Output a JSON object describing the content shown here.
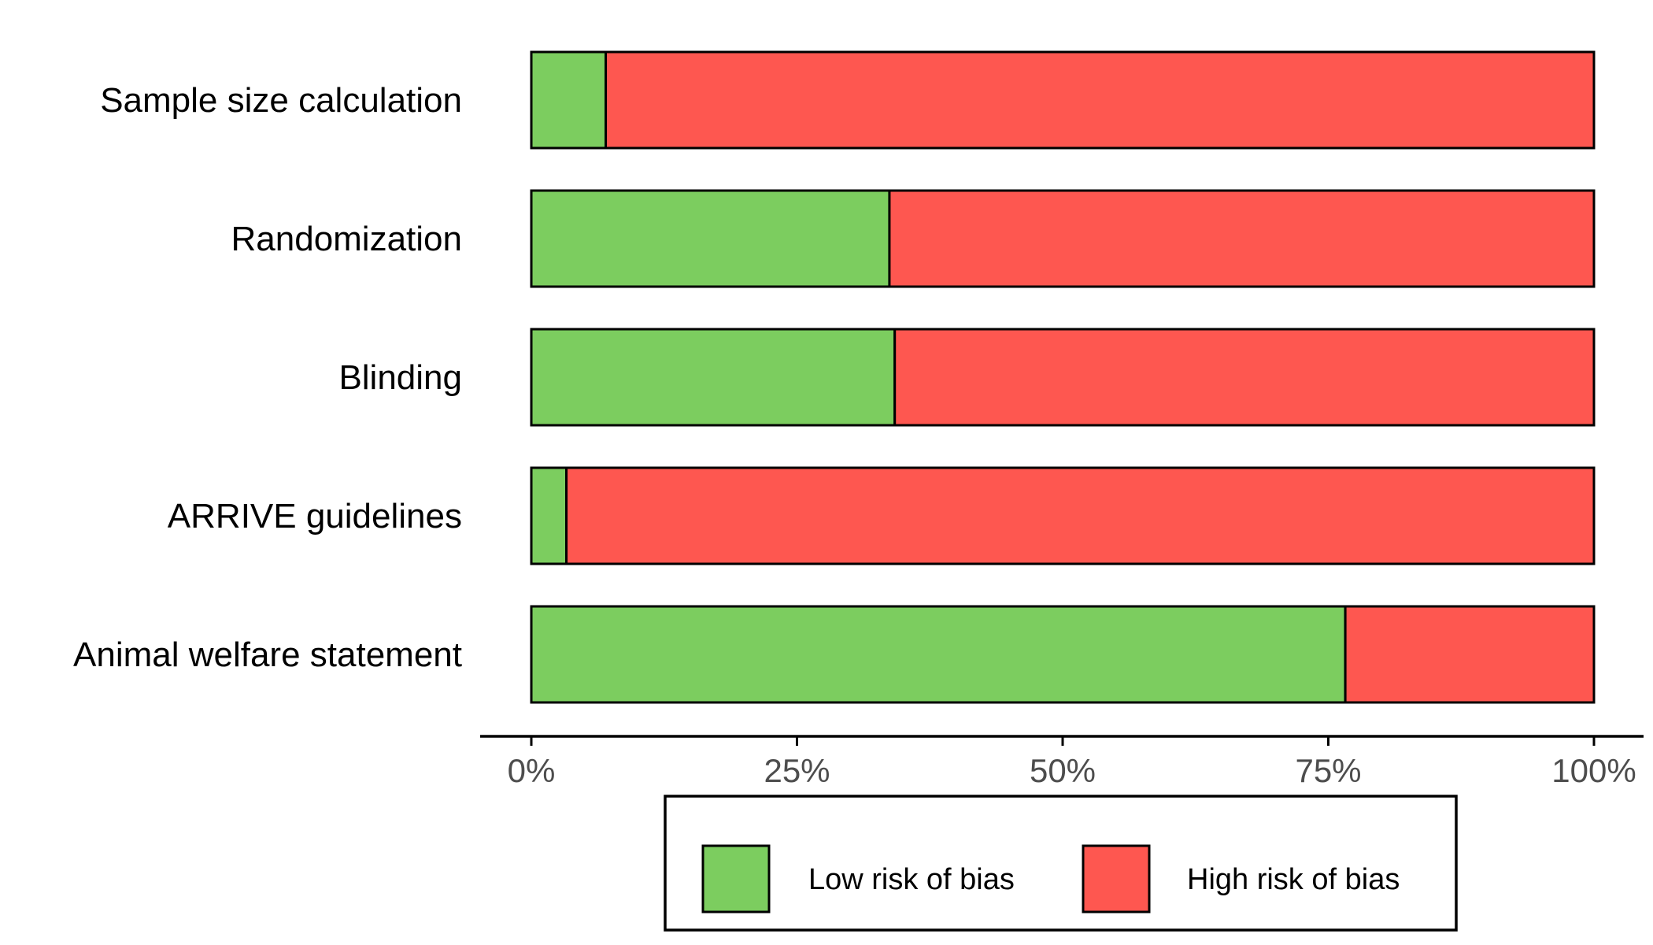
{
  "chart_data": {
    "type": "bar",
    "orientation": "horizontal",
    "stacked": true,
    "categories": [
      "Sample size calculation",
      "Randomization",
      "Blinding",
      "ARRIVE guidelines",
      "Animal welfare statement"
    ],
    "series": [
      {
        "name": "Low risk of bias",
        "color": "#7ccd5f",
        "values": [
          7,
          33.7,
          34.2,
          3.3,
          76.6
        ]
      },
      {
        "name": "High risk of bias",
        "color": "#fe5750",
        "values": [
          93,
          66.3,
          65.8,
          96.7,
          23.4
        ]
      }
    ],
    "x_ticks": [
      "0%",
      "25%",
      "50%",
      "75%",
      "100%"
    ],
    "x_tick_values": [
      0,
      25,
      50,
      75,
      100
    ],
    "xlim": [
      0,
      100
    ],
    "xlabel": "",
    "ylabel": "",
    "title": "",
    "grid": false,
    "legend_position": "bottom"
  }
}
